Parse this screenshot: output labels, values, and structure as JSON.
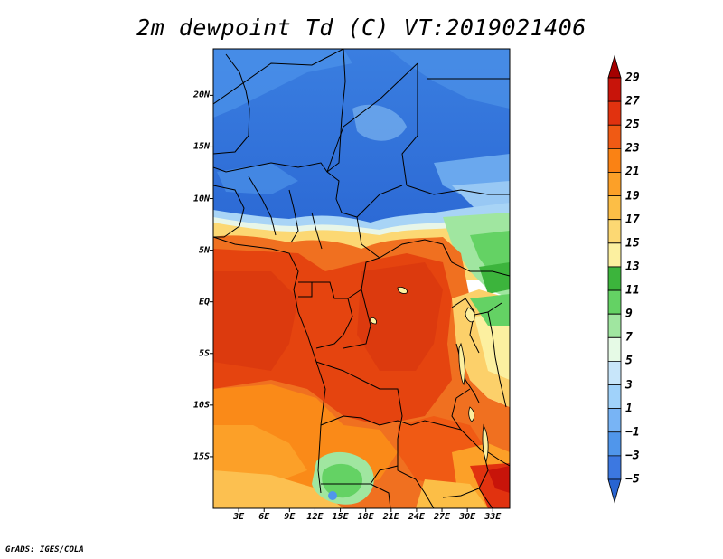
{
  "title": "2m dewpoint Td (C) VT:2019021406",
  "credit": "GrADS: IGES/COLA",
  "map": {
    "lat_labels": [
      "20N",
      "15N",
      "10N",
      "5N",
      "EQ",
      "5S",
      "10S",
      "15S"
    ],
    "lon_labels": [
      "3E",
      "6E",
      "9E",
      "12E",
      "15E",
      "18E",
      "21E",
      "24E",
      "27E",
      "30E",
      "33E"
    ],
    "lat_range": [
      -20,
      24.5
    ],
    "lon_range": [
      0,
      35
    ]
  },
  "colorbar": {
    "labels": [
      "29",
      "27",
      "25",
      "23",
      "21",
      "19",
      "17",
      "15",
      "13",
      "11",
      "9",
      "7",
      "5",
      "3",
      "1",
      "−1",
      "−3",
      "−5"
    ],
    "colors": [
      "#a50000",
      "#c8140a",
      "#e1320f",
      "#f05a14",
      "#fa8214",
      "#fca028",
      "#fcbe46",
      "#fcd873",
      "#fcf0a0",
      "#3cb43c",
      "#64d264",
      "#a0e6a0",
      "#e6fae6",
      "#c8e6fa",
      "#a0d2fa",
      "#78b4f5",
      "#5096eb",
      "#3c78e1",
      "#2864d2"
    ]
  }
}
